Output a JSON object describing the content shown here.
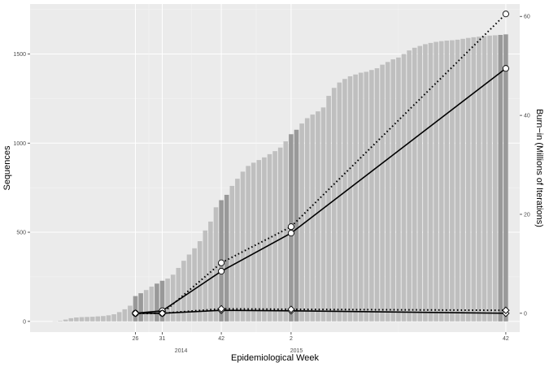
{
  "chart_data": {
    "type": "bar",
    "xlabel": "Epidemiological Week",
    "ylabel": "Sequences",
    "y2label": "Burn−in (Millions of Iterations)",
    "ylim": [
      -60,
      1780
    ],
    "y2lim": [
      -3.8,
      62.5
    ],
    "y_ticks": [
      0,
      500,
      1000,
      1500
    ],
    "y2_ticks": [
      0,
      20,
      40,
      60
    ],
    "x_ticks": [
      {
        "label": "26",
        "index": 15
      },
      {
        "label": "31",
        "index": 20
      },
      {
        "label": "42",
        "index": 31
      },
      {
        "label": "2",
        "index": 44
      },
      {
        "label": "42",
        "index": 84
      }
    ],
    "year_labels": [
      {
        "label": "2014",
        "index": 23.5
      },
      {
        "label": "2015",
        "index": 45
      }
    ],
    "bars": {
      "weeks_count": 85,
      "values": [
        0,
        3,
        10,
        18,
        22,
        24,
        25,
        26,
        28,
        30,
        34,
        40,
        52,
        68,
        88,
        142,
        158,
        176,
        195,
        212,
        228,
        240,
        262,
        300,
        340,
        375,
        410,
        450,
        510,
        560,
        640,
        680,
        710,
        760,
        800,
        840,
        872,
        890,
        905,
        920,
        938,
        955,
        975,
        1010,
        1050,
        1075,
        1110,
        1140,
        1160,
        1178,
        1200,
        1265,
        1310,
        1340,
        1360,
        1375,
        1385,
        1395,
        1400,
        1410,
        1420,
        1440,
        1455,
        1470,
        1480,
        1500,
        1520,
        1535,
        1545,
        1555,
        1562,
        1568,
        1572,
        1575,
        1577,
        1580,
        1585,
        1590,
        1594,
        1597,
        1600,
        1603,
        1605,
        1607,
        1610
      ],
      "highlight_indices": [
        15,
        16,
        19,
        20,
        31,
        32,
        44,
        45,
        83,
        84
      ],
      "light_color": "#bfbfbf",
      "dark_color": "#999999"
    },
    "series": [
      {
        "style": "solid",
        "marker": "circle",
        "x": [
          15,
          20,
          31,
          44,
          84
        ],
        "values": [
          0,
          0.5,
          8.5,
          16.2,
          49.5
        ]
      },
      {
        "style": "dotted",
        "marker": "circle",
        "x": [
          15,
          20,
          31,
          44,
          84
        ],
        "values": [
          0,
          0,
          10.2,
          17.5,
          60.5
        ]
      },
      {
        "style": "solid",
        "marker": "diamond",
        "x": [
          15,
          20,
          31,
          44,
          84
        ],
        "values": [
          0,
          0,
          0.6,
          0.5,
          0
        ]
      },
      {
        "style": "dotted",
        "marker": "diamond",
        "x": [
          15,
          20,
          31,
          44,
          84
        ],
        "values": [
          0,
          0,
          0.9,
          0.8,
          0.6
        ]
      }
    ],
    "grid": true,
    "panel_background": "#ebebeb",
    "grid_color": "#ffffff"
  }
}
